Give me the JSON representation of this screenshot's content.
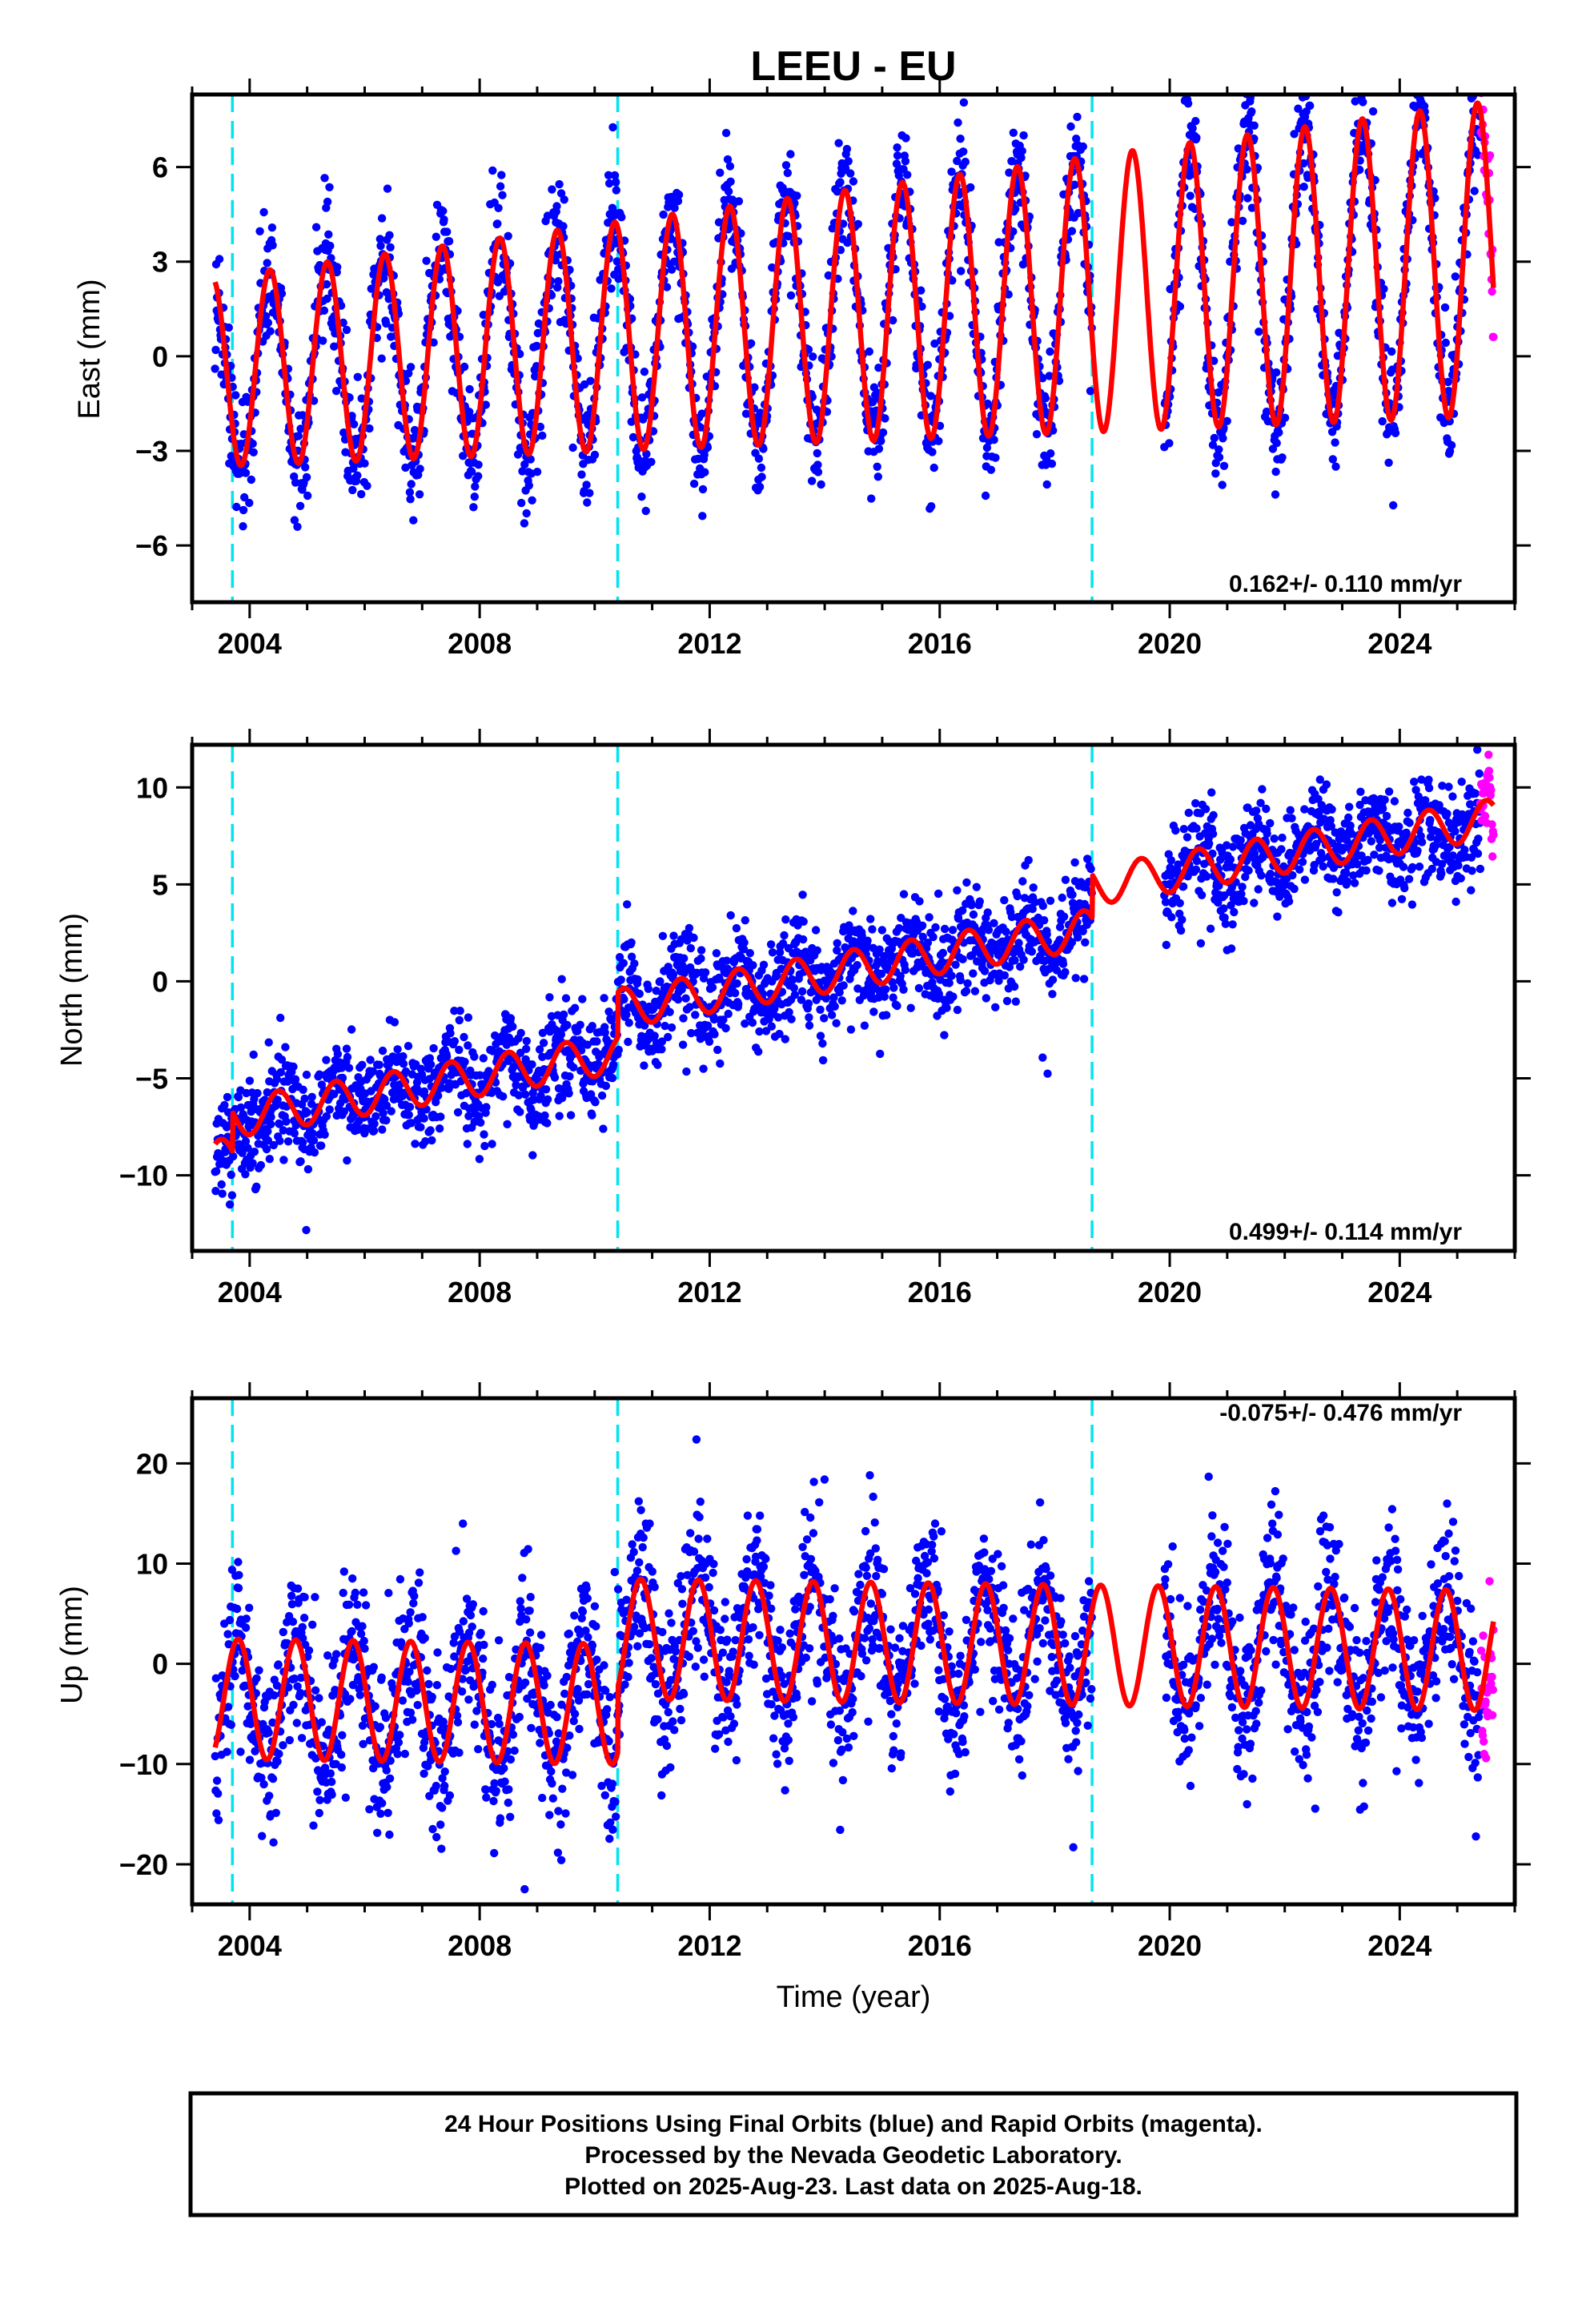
{
  "title": "LEEU - EU",
  "colors": {
    "final_orbits": "#0000ff",
    "rapid_orbits": "#ff00ff",
    "model_fit": "#ff0000",
    "offset_lines": "#00e5ee",
    "frame": "#000000"
  },
  "x_axis_label": "Time (year)",
  "chart_data": [
    {
      "type": "scatter",
      "component": "East",
      "ylabel": "East (mm)",
      "rate_text": "0.162+/- 0.110 mm/yr",
      "xlim": [
        2003.0,
        2026.0
      ],
      "ylim": [
        -7.8,
        8.3
      ],
      "yticks": [
        6,
        3,
        0,
        -3,
        -6
      ],
      "ytick_labels": [
        "6",
        "3",
        "0",
        "−3",
        "−6"
      ],
      "xticks": [
        2004,
        2008,
        2012,
        2016,
        2020,
        2024
      ],
      "xtick_labels": [
        "2004",
        "2008",
        "2012",
        "2016",
        "2020",
        "2024"
      ],
      "offset_epochs": [
        2003.7,
        2010.4,
        2018.65
      ],
      "data_span": [
        2003.4,
        2025.4
      ],
      "data_gap": [
        2018.65,
        2019.9
      ],
      "rapid_span": [
        2025.4,
        2025.63
      ],
      "model": {
        "trend_mm_per_yr": 0.162,
        "intercept_mm": -0.5,
        "annual_amp_mm": 3.0,
        "annual_phase_yr": 0.1,
        "amp_growth_per_yr": 0.03,
        "noise_mm": 1.0,
        "offsets_mm": [
          0,
          0,
          0
        ]
      },
      "series": [
        {
          "name": "Final Orbits (blue)",
          "kind": "points",
          "color": "#0000ff"
        },
        {
          "name": "Rapid Orbits (magenta)",
          "kind": "points",
          "color": "#ff00ff"
        },
        {
          "kind": "line",
          "color": "#ff0000"
        }
      ]
    },
    {
      "type": "scatter",
      "component": "North",
      "ylabel": "North (mm)",
      "rate_text": "0.499+/- 0.114 mm/yr",
      "xlim": [
        2003.0,
        2026.0
      ],
      "ylim": [
        -13.9,
        12.2
      ],
      "yticks": [
        10,
        5,
        0,
        -5,
        -10
      ],
      "ytick_labels": [
        "10",
        "5",
        "0",
        "−5",
        "−10"
      ],
      "xticks": [
        2004,
        2008,
        2012,
        2016,
        2020,
        2024
      ],
      "xtick_labels": [
        "2004",
        "2008",
        "2012",
        "2016",
        "2020",
        "2024"
      ],
      "offset_epochs": [
        2003.7,
        2010.4,
        2018.65
      ],
      "data_span": [
        2003.4,
        2025.4
      ],
      "data_gap": [
        2018.65,
        2019.9
      ],
      "rapid_span": [
        2025.4,
        2025.63
      ],
      "model": {
        "trend_mm_per_yr": 0.499,
        "intercept_mm": -9.2,
        "annual_amp_mm": 1.0,
        "annual_phase_yr": 0.25,
        "amp_growth_per_yr": 0.0,
        "noise_mm": 1.3,
        "offsets_mm": [
          2.0,
          2.3,
          2.2
        ]
      },
      "series": [
        {
          "name": "Final Orbits (blue)",
          "kind": "points",
          "color": "#0000ff"
        },
        {
          "name": "Rapid Orbits (magenta)",
          "kind": "points",
          "color": "#ff00ff"
        },
        {
          "kind": "line",
          "color": "#ff0000"
        }
      ]
    },
    {
      "type": "scatter",
      "component": "Up",
      "ylabel": "Up (mm)",
      "rate_text": "-0.075+/- 0.476 mm/yr",
      "xlim": [
        2003.0,
        2026.0
      ],
      "ylim": [
        -24.0,
        26.5
      ],
      "yticks": [
        20,
        10,
        0,
        -10,
        -20
      ],
      "ytick_labels": [
        "20",
        "10",
        "0",
        "−10",
        "−20"
      ],
      "xticks": [
        2004,
        2008,
        2012,
        2016,
        2020,
        2024
      ],
      "xtick_labels": [
        "2004",
        "2008",
        "2012",
        "2016",
        "2020",
        "2024"
      ],
      "offset_epochs": [
        2003.7,
        2010.4,
        2018.65
      ],
      "data_span": [
        2003.4,
        2025.4
      ],
      "data_gap": [
        2018.65,
        2019.9
      ],
      "rapid_span": [
        2025.4,
        2025.63
      ],
      "model": {
        "trend_mm_per_yr": -0.075,
        "intercept_mm": -3.5,
        "annual_amp_mm": 6.0,
        "annual_phase_yr": 0.55,
        "amp_growth_per_yr": 0.0,
        "noise_mm": 4.0,
        "offsets_mm": [
          0,
          6.5,
          0
        ]
      },
      "series": [
        {
          "name": "Final Orbits (blue)",
          "kind": "points",
          "color": "#0000ff"
        },
        {
          "name": "Rapid Orbits (magenta)",
          "kind": "points",
          "color": "#ff00ff"
        },
        {
          "kind": "line",
          "color": "#ff0000"
        }
      ]
    }
  ],
  "footer": {
    "line1": "24 Hour Positions Using Final Orbits (blue) and Rapid Orbits (magenta).",
    "line2": "Processed by the Nevada Geodetic Laboratory.",
    "line3": "Plotted on 2025-Aug-23. Last data on 2025-Aug-18."
  }
}
